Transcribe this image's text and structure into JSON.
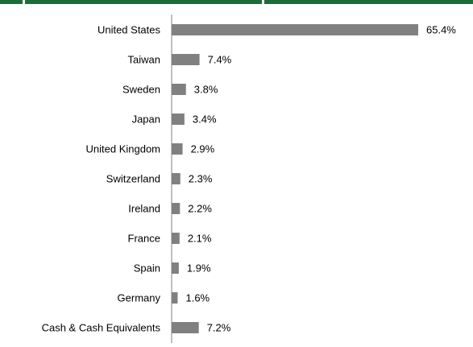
{
  "chart_data": {
    "type": "bar",
    "orientation": "horizontal",
    "categories": [
      "United States",
      "Taiwan",
      "Sweden",
      "Japan",
      "United Kingdom",
      "Switzerland",
      "Ireland",
      "France",
      "Spain",
      "Germany",
      "Cash & Cash Equivalents"
    ],
    "values": [
      65.4,
      7.4,
      3.8,
      3.4,
      2.9,
      2.3,
      2.2,
      2.1,
      1.9,
      1.6,
      7.2
    ],
    "value_labels": [
      "65.4%",
      "7.4%",
      "3.8%",
      "3.4%",
      "2.9%",
      "2.3%",
      "2.2%",
      "2.1%",
      "1.9%",
      "1.6%",
      "7.2%"
    ],
    "color": "#808080"
  }
}
